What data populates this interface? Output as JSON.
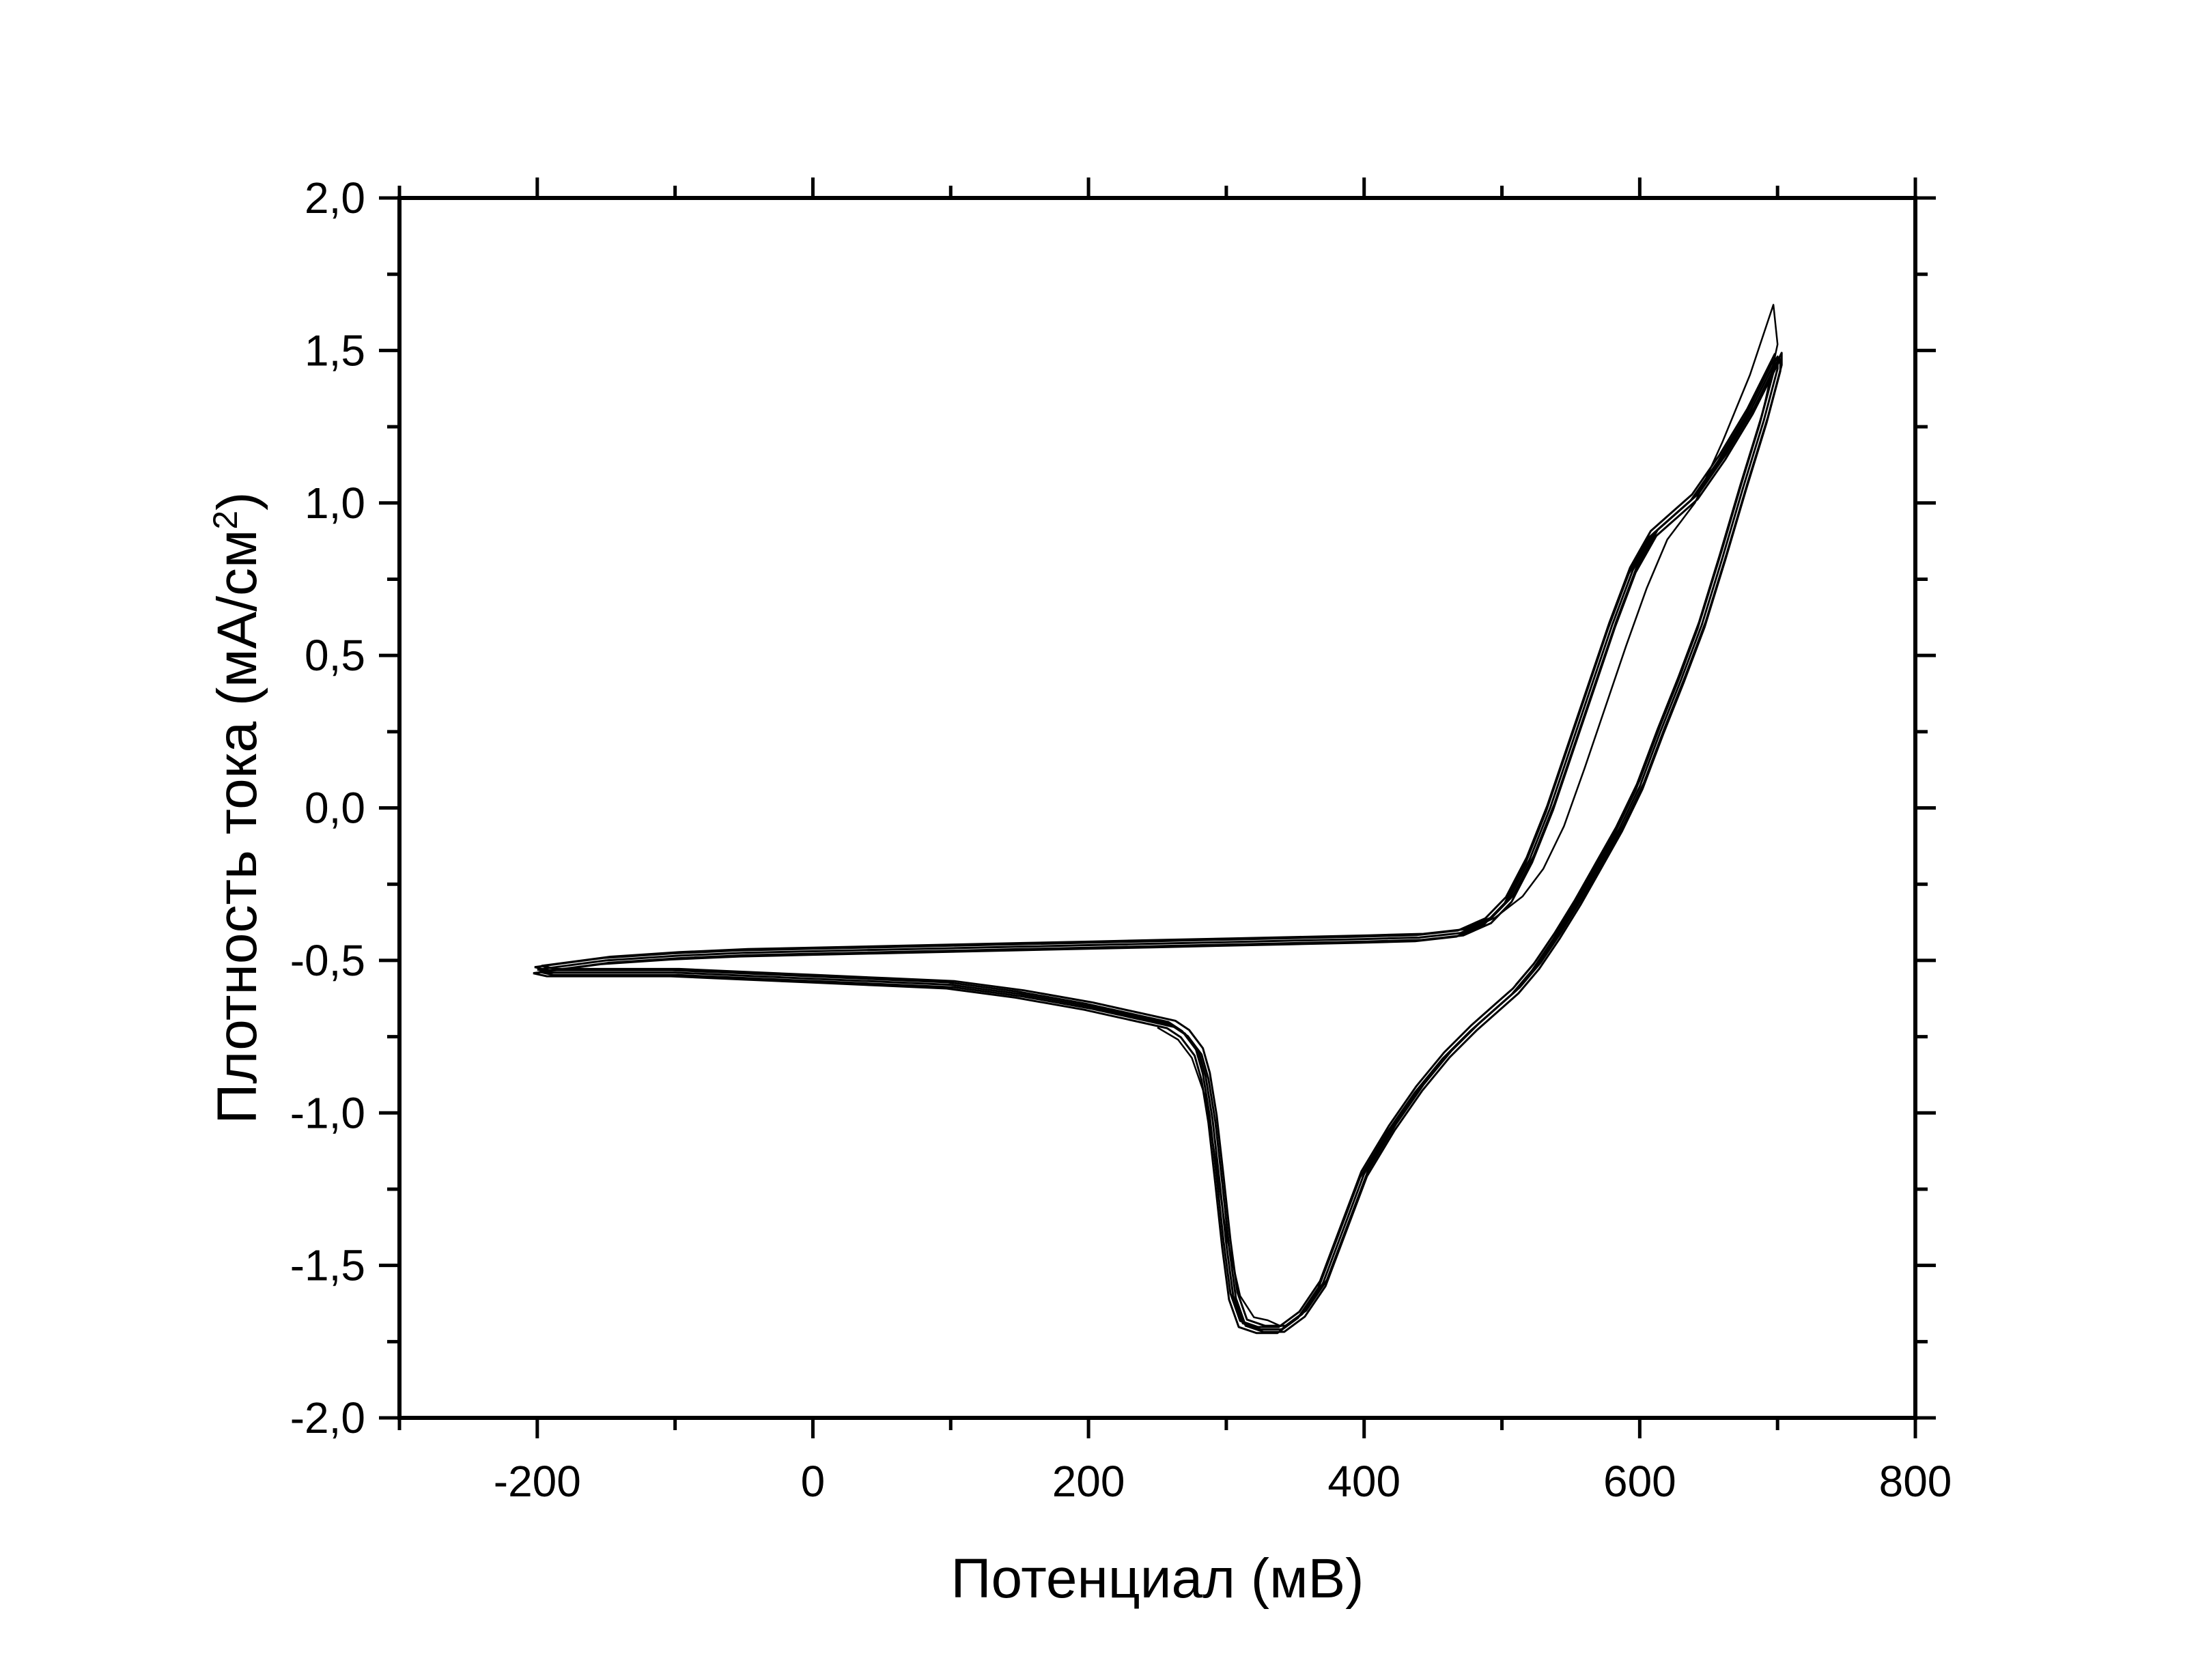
{
  "chart_data": {
    "type": "line",
    "title": "",
    "xlabel": "Потенциал (мВ)",
    "ylabel_main": "Плотность тока (мА/см",
    "ylabel_sup": "2",
    "ylabel_close": ")",
    "xlim": [
      -300,
      800
    ],
    "ylim": [
      -2.0,
      2.0
    ],
    "x_ticks": [
      -200,
      0,
      200,
      400,
      600,
      800
    ],
    "x_tick_labels": [
      "-200",
      "0",
      "200",
      "400",
      "600",
      "800"
    ],
    "y_ticks": [
      2.0,
      1.5,
      1.0,
      0.5,
      0.0,
      -0.5,
      -1.0,
      -1.5,
      -2.0
    ],
    "y_tick_labels": [
      "2,0",
      "1,5",
      "1,0",
      "0,5",
      "0,0",
      "-0,5",
      "-1,0",
      "-1,5",
      "-2,0"
    ],
    "legend": "none",
    "grid": false,
    "line_color": "#000000",
    "series": [
      {
        "x": [
          -200,
          -150,
          -100,
          -50,
          0,
          50,
          100,
          150,
          200,
          250,
          300,
          350,
          400,
          440,
          470,
          490,
          505,
          520,
          535,
          550,
          565,
          580,
          595,
          610,
          625,
          640,
          660,
          680,
          700,
          700,
          690,
          675,
          660,
          645,
          630,
          615,
          600,
          585,
          570,
          555,
          540,
          525,
          510,
          500,
          480,
          460,
          440,
          420,
          400,
          385,
          370,
          355,
          340,
          325,
          312,
          305,
          300,
          295,
          290,
          285,
          280,
          270,
          260,
          240,
          220,
          200,
          150,
          100,
          50,
          0,
          -50,
          -100,
          -150,
          -190,
          -200
        ],
        "y": [
          -0.53,
          -0.5,
          -0.485,
          -0.475,
          -0.47,
          -0.465,
          -0.46,
          -0.455,
          -0.45,
          -0.445,
          -0.44,
          -0.435,
          -0.43,
          -0.425,
          -0.41,
          -0.37,
          -0.3,
          -0.17,
          0.0,
          0.2,
          0.4,
          0.6,
          0.78,
          0.9,
          0.96,
          1.02,
          1.15,
          1.3,
          1.48,
          1.44,
          1.27,
          1.05,
          0.82,
          0.6,
          0.42,
          0.25,
          0.07,
          -0.07,
          -0.19,
          -0.31,
          -0.42,
          -0.52,
          -0.6,
          -0.64,
          -0.72,
          -0.81,
          -0.92,
          -1.05,
          -1.2,
          -1.38,
          -1.56,
          -1.66,
          -1.71,
          -1.71,
          -1.69,
          -1.6,
          -1.43,
          -1.22,
          -1.02,
          -0.88,
          -0.8,
          -0.74,
          -0.71,
          -0.69,
          -0.67,
          -0.65,
          -0.61,
          -0.58,
          -0.57,
          -0.56,
          -0.55,
          -0.54,
          -0.54,
          -0.54,
          -0.53
        ]
      },
      {
        "x": [
          470,
          495,
          515,
          530,
          545,
          560,
          575,
          590,
          605,
          620,
          640,
          660,
          680,
          697,
          700,
          690,
          675,
          660,
          645,
          630,
          615,
          600,
          585,
          570,
          555,
          540,
          525,
          510
        ],
        "y": [
          -0.41,
          -0.36,
          -0.29,
          -0.2,
          -0.06,
          0.13,
          0.33,
          0.53,
          0.72,
          0.88,
          1.0,
          1.2,
          1.42,
          1.65,
          1.52,
          1.31,
          1.08,
          0.85,
          0.63,
          0.44,
          0.27,
          0.09,
          -0.05,
          -0.17,
          -0.29,
          -0.4,
          -0.5,
          -0.58
        ]
      },
      {
        "x": [
          250,
          265,
          275,
          285,
          292,
          300,
          310,
          320,
          330,
          340
        ],
        "y": [
          -0.72,
          -0.76,
          -0.82,
          -0.95,
          -1.15,
          -1.4,
          -1.6,
          -1.67,
          -1.68,
          -1.7
        ]
      }
    ]
  }
}
